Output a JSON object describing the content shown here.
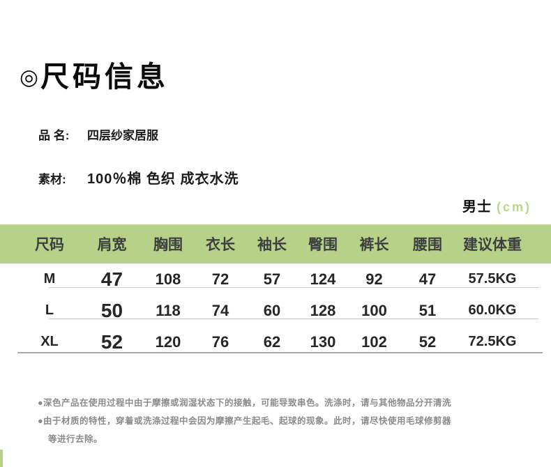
{
  "colors": {
    "accent_green": "#b6d289",
    "unit_text_green": "#b9d68b",
    "header_text": "#3e3e3e",
    "body_text": "#262626",
    "note_gray": "#8b8b8b"
  },
  "header": {
    "bullet": "◎",
    "title": "尺码信息"
  },
  "product": {
    "name_label": "品 名:",
    "name_value": "四层纱家居服",
    "material_label": "素材:",
    "material_value": "100％棉 色织 成衣水洗"
  },
  "unit_line": {
    "gender": "男士",
    "unit": "(cm)"
  },
  "size_table": {
    "headers": [
      "尺码",
      "肩宽",
      "胸围",
      "衣长",
      "袖长",
      "臀围",
      "裤长",
      "腰围",
      "建议体重"
    ],
    "rows": [
      [
        "M",
        "47",
        "108",
        "72",
        "57",
        "124",
        "92",
        "47",
        "57.5KG"
      ],
      [
        "L",
        "50",
        "118",
        "74",
        "60",
        "128",
        "100",
        "51",
        "60.0KG"
      ],
      [
        "XL",
        "52",
        "120",
        "76",
        "62",
        "130",
        "102",
        "52",
        "72.5KG"
      ]
    ]
  },
  "notes": {
    "line1": "●深色产品在使用过程中由于摩擦或润湿状态下的接触，可能导致串色。洗涤时，请与其他物品分开清洗",
    "line2": "●由于材质的特性，穿着或洗涤过程中会因为摩擦产生起毛、起球的现象。此时，请尽快使用毛球修剪器",
    "line3": "等进行去除。"
  }
}
